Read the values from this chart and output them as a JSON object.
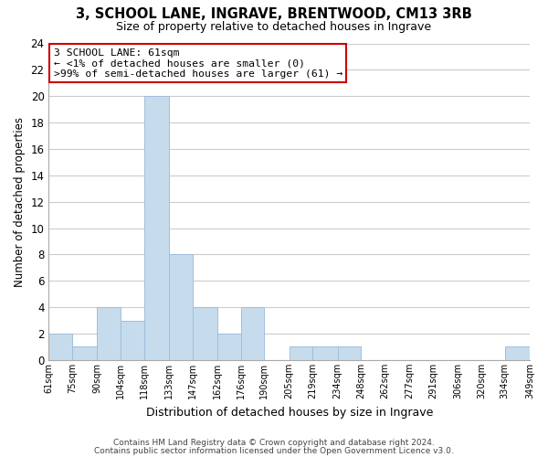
{
  "title": "3, SCHOOL LANE, INGRAVE, BRENTWOOD, CM13 3RB",
  "subtitle": "Size of property relative to detached houses in Ingrave",
  "xlabel": "Distribution of detached houses by size in Ingrave",
  "ylabel": "Number of detached properties",
  "bin_edges": [
    61,
    75,
    90,
    104,
    118,
    133,
    147,
    162,
    176,
    190,
    205,
    219,
    234,
    248,
    262,
    277,
    291,
    306,
    320,
    334,
    349
  ],
  "bin_labels": [
    "61sqm",
    "75sqm",
    "90sqm",
    "104sqm",
    "118sqm",
    "133sqm",
    "147sqm",
    "162sqm",
    "176sqm",
    "190sqm",
    "205sqm",
    "219sqm",
    "234sqm",
    "248sqm",
    "262sqm",
    "277sqm",
    "291sqm",
    "306sqm",
    "320sqm",
    "334sqm",
    "349sqm"
  ],
  "counts": [
    2,
    1,
    4,
    3,
    20,
    8,
    4,
    2,
    4,
    0,
    1,
    1,
    1,
    0,
    0,
    0,
    0,
    0,
    0,
    1
  ],
  "bar_color": "#c6dcec",
  "bar_edge_color": "#a0bedc",
  "annotation_title": "3 SCHOOL LANE: 61sqm",
  "annotation_line1": "← <1% of detached houses are smaller (0)",
  "annotation_line2": ">99% of semi-detached houses are larger (61) →",
  "annotation_box_color": "#ffffff",
  "annotation_box_edge_color": "#cc0000",
  "ylim": [
    0,
    24
  ],
  "yticks": [
    0,
    2,
    4,
    6,
    8,
    10,
    12,
    14,
    16,
    18,
    20,
    22,
    24
  ],
  "footer1": "Contains HM Land Registry data © Crown copyright and database right 2024.",
  "footer2": "Contains public sector information licensed under the Open Government Licence v3.0.",
  "background_color": "#ffffff",
  "grid_color": "#cccccc"
}
